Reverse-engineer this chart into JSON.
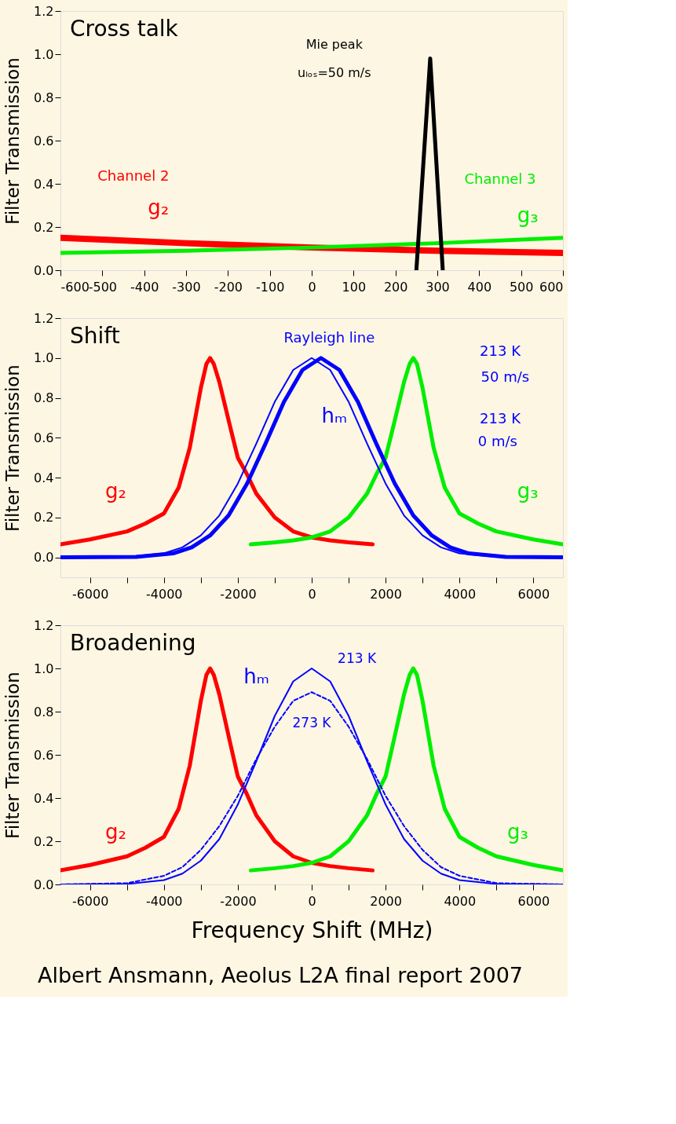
{
  "chart_data": [
    {
      "type": "line",
      "title": "Cross talk",
      "ylabel": "Filter Transmission",
      "xlim": [
        -600,
        600
      ],
      "xticks": [
        -600,
        -500,
        -400,
        -300,
        -200,
        -100,
        0,
        100,
        200,
        300,
        400,
        500,
        600
      ],
      "ylim": [
        0,
        1.2
      ],
      "yticks": [
        {
          "value": 0,
          "label": "0.0"
        },
        {
          "value": 0.2,
          "label": "0.2"
        },
        {
          "value": 0.4,
          "label": "0.4"
        },
        {
          "value": 0.6,
          "label": "0.6"
        },
        {
          "value": 0.8,
          "label": "0.8"
        },
        {
          "value": 1.0,
          "label": "1.0"
        },
        {
          "value": 1.2,
          "label": "1.2"
        }
      ],
      "series": [
        {
          "color": "#ff0000",
          "x": [
            -600,
            -300,
            0,
            300,
            600
          ],
          "values": [
            0.15,
            0.125,
            0.105,
            0.09,
            0.08
          ]
        },
        {
          "color": "#00ee00",
          "x": [
            -600,
            -300,
            0,
            300,
            600
          ],
          "values": [
            0.08,
            0.09,
            0.105,
            0.125,
            0.15
          ]
        },
        {
          "color": "#000000",
          "x": [
            250,
            283,
            313
          ],
          "values": [
            0,
            0.98,
            0
          ]
        }
      ],
      "annotations": [
        "Mie peak",
        "uₗₒₛ=50 m/s",
        "Channel 2",
        "g₂",
        "Channel 3",
        "g₃"
      ]
    },
    {
      "type": "line",
      "title": "Shift",
      "ylabel": "Filter Transmission",
      "xlim": [
        -6800,
        6800
      ],
      "xticks": [
        -6000,
        {
          "value": -5000,
          "label": null
        },
        -4000,
        {
          "value": -3000,
          "label": null
        },
        -2000,
        {
          "value": -1000,
          "label": null
        },
        0,
        {
          "value": 1000,
          "label": null
        },
        2000,
        {
          "value": 3000,
          "label": null
        },
        4000,
        {
          "value": 5000,
          "label": null
        },
        6000
      ],
      "ylim": [
        -0.1,
        1.2
      ],
      "yticks": [
        {
          "value": 0,
          "label": "0.0"
        },
        {
          "value": 0.2,
          "label": "0.2"
        },
        {
          "value": 0.4,
          "label": "0.4"
        },
        {
          "value": 0.6,
          "label": "0.6"
        },
        {
          "value": 0.8,
          "label": "0.8"
        },
        {
          "value": 1.0,
          "label": "1.0"
        },
        {
          "value": 1.2,
          "label": "1.2"
        }
      ],
      "series": [
        {
          "color": "#ff0000",
          "x": [
            -6800,
            -6000,
            -5000,
            -4500,
            -4000,
            -3600,
            -3300,
            -3000,
            -2850,
            -2750,
            -2650,
            -2500,
            -2200,
            -2000,
            -1760,
            -1500,
            -1000,
            -500,
            0,
            500,
            1000,
            1650
          ],
          "values": [
            0.065,
            0.09,
            0.13,
            0.17,
            0.22,
            0.35,
            0.55,
            0.85,
            0.97,
            1.0,
            0.97,
            0.88,
            0.65,
            0.5,
            0.42,
            0.32,
            0.2,
            0.13,
            0.1,
            0.085,
            0.075,
            0.065
          ]
        },
        {
          "color": "#00ee00",
          "x": [
            -1650,
            -1000,
            -500,
            0,
            500,
            1000,
            1500,
            1760,
            2000,
            2200,
            2500,
            2650,
            2750,
            2850,
            3000,
            3300,
            3600,
            4000,
            4500,
            5000,
            6000,
            6800
          ],
          "values": [
            0.065,
            0.075,
            0.085,
            0.1,
            0.13,
            0.2,
            0.32,
            0.42,
            0.5,
            0.65,
            0.88,
            0.97,
            1.0,
            0.97,
            0.85,
            0.55,
            0.35,
            0.22,
            0.17,
            0.13,
            0.09,
            0.065
          ]
        },
        {
          "color": "#0000ff",
          "x": [
            -6800,
            -5000,
            -4000,
            -3500,
            -3000,
            -2500,
            -2000,
            -1500,
            -1000,
            -500,
            0,
            500,
            1000,
            1500,
            2000,
            2500,
            3000,
            3500,
            4000,
            5000,
            6800
          ],
          "values": [
            0,
            0.002,
            0.02,
            0.05,
            0.11,
            0.21,
            0.37,
            0.57,
            0.78,
            0.94,
            1.0,
            0.94,
            0.78,
            0.57,
            0.37,
            0.21,
            0.11,
            0.05,
            0.02,
            0.002,
            0
          ]
        },
        {
          "color": "#0000ff",
          "x": [
            -6800,
            -4750,
            -3750,
            -3250,
            -2750,
            -2250,
            -1750,
            -1250,
            -750,
            -250,
            250,
            750,
            1250,
            1750,
            2250,
            2750,
            3250,
            3750,
            4250,
            5250,
            6800
          ],
          "values": [
            0,
            0.002,
            0.02,
            0.05,
            0.11,
            0.21,
            0.37,
            0.57,
            0.78,
            0.94,
            1.0,
            0.94,
            0.78,
            0.57,
            0.37,
            0.21,
            0.11,
            0.05,
            0.02,
            0.002,
            0
          ]
        }
      ],
      "annotations": [
        "Rayleigh line",
        "hₘ",
        "213 K",
        "50 m/s",
        "213 K",
        "0 m/s",
        "g₂",
        "g₃"
      ]
    },
    {
      "type": "line",
      "title": "Broadening",
      "ylabel": "Filter Transmission",
      "xlabel": "Frequency Shift (MHz)",
      "xlim": [
        -6800,
        6800
      ],
      "xticks": [
        -6000,
        {
          "value": -5000,
          "label": null
        },
        -4000,
        {
          "value": -3000,
          "label": null
        },
        -2000,
        {
          "value": -1000,
          "label": null
        },
        0,
        {
          "value": 1000,
          "label": null
        },
        2000,
        {
          "value": 3000,
          "label": null
        },
        4000,
        {
          "value": 5000,
          "label": null
        },
        6000
      ],
      "ylim": [
        0,
        1.2
      ],
      "yticks": [
        {
          "value": 0,
          "label": "0.0"
        },
        {
          "value": 0.2,
          "label": "0.2"
        },
        {
          "value": 0.4,
          "label": "0.4"
        },
        {
          "value": 0.6,
          "label": "0.6"
        },
        {
          "value": 0.8,
          "label": "0.8"
        },
        {
          "value": 1.0,
          "label": "1.0"
        },
        {
          "value": 1.2,
          "label": "1.2"
        }
      ],
      "series": [
        {
          "color": "#ff0000",
          "x": [
            -6800,
            -6000,
            -5000,
            -4500,
            -4000,
            -3600,
            -3300,
            -3000,
            -2850,
            -2750,
            -2650,
            -2500,
            -2200,
            -2000,
            -1760,
            -1500,
            -1000,
            -500,
            0,
            500,
            1000,
            1650
          ],
          "values": [
            0.065,
            0.09,
            0.13,
            0.17,
            0.22,
            0.35,
            0.55,
            0.85,
            0.97,
            1.0,
            0.97,
            0.88,
            0.65,
            0.5,
            0.42,
            0.32,
            0.2,
            0.13,
            0.1,
            0.085,
            0.075,
            0.065
          ]
        },
        {
          "color": "#00ee00",
          "x": [
            -1650,
            -1000,
            -500,
            0,
            500,
            1000,
            1500,
            1760,
            2000,
            2200,
            2500,
            2650,
            2750,
            2850,
            3000,
            3300,
            3600,
            4000,
            4500,
            5000,
            6000,
            6800
          ],
          "values": [
            0.065,
            0.075,
            0.085,
            0.1,
            0.13,
            0.2,
            0.32,
            0.42,
            0.5,
            0.65,
            0.88,
            0.97,
            1.0,
            0.97,
            0.85,
            0.55,
            0.35,
            0.22,
            0.17,
            0.13,
            0.09,
            0.065
          ]
        },
        {
          "color": "#0000ff",
          "x": [
            -6800,
            -5000,
            -4000,
            -3500,
            -3000,
            -2500,
            -2000,
            -1500,
            -1000,
            -500,
            0,
            500,
            1000,
            1500,
            2000,
            2500,
            3000,
            3500,
            4000,
            5000,
            6800
          ],
          "values": [
            0,
            0.002,
            0.02,
            0.05,
            0.11,
            0.21,
            0.37,
            0.57,
            0.78,
            0.94,
            1.0,
            0.94,
            0.78,
            0.57,
            0.37,
            0.21,
            0.11,
            0.05,
            0.02,
            0.002,
            0
          ]
        },
        {
          "color": "#0000ff",
          "line_style": "dashed",
          "x": [
            -6800,
            -5000,
            -4000,
            -3500,
            -3000,
            -2500,
            -2000,
            -1500,
            -1000,
            -500,
            0,
            500,
            1000,
            1500,
            2000,
            2500,
            3000,
            3500,
            4000,
            5000,
            6800
          ],
          "values": [
            0,
            0.006,
            0.04,
            0.08,
            0.16,
            0.27,
            0.41,
            0.58,
            0.73,
            0.85,
            0.89,
            0.85,
            0.73,
            0.58,
            0.41,
            0.27,
            0.16,
            0.08,
            0.04,
            0.006,
            0
          ]
        }
      ],
      "annotations": [
        "hₘ",
        "213 K",
        "273 K",
        "g₂",
        "g₃",
        "Albert Ansmann, Aeolus L2A final report 2007"
      ]
    }
  ]
}
